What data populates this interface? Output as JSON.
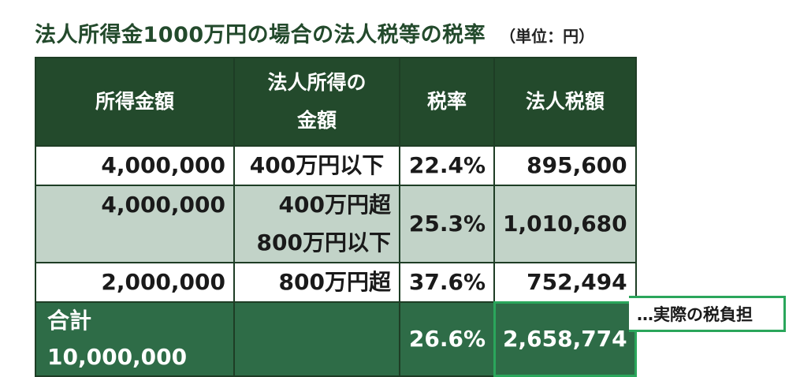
{
  "title": "法人所得金1000万円の場合の法人税等の税率",
  "unit": "（単位：円）",
  "headers": {
    "income": "所得金額",
    "bracket_line1": "法人所得の",
    "bracket_line2": "金額",
    "rate": "税率",
    "tax": "法人税額"
  },
  "rows": [
    {
      "income": "4,000,000",
      "bracket_line1": "400万円以下",
      "bracket_line2": "",
      "rate": "22.4%",
      "tax": "895,600"
    },
    {
      "income": "4,000,000",
      "bracket_line1": "400万円超",
      "bracket_line2": "800万円以下",
      "rate": "25.3%",
      "tax": "1,010,680"
    },
    {
      "income": "2,000,000",
      "bracket_line1": "800万円超",
      "bracket_line2": "",
      "rate": "37.6%",
      "tax": "752,494"
    }
  ],
  "total": {
    "label": "合計10,000,000",
    "bracket": "",
    "rate": "26.6%",
    "tax": "2,658,774"
  },
  "note": "…実際の税負担",
  "colors": {
    "header_bg": "#234a2c",
    "total_bg": "#2e6c47",
    "pale_row_bg": "#c2d3c8",
    "highlight_border": "#2aa65b"
  }
}
